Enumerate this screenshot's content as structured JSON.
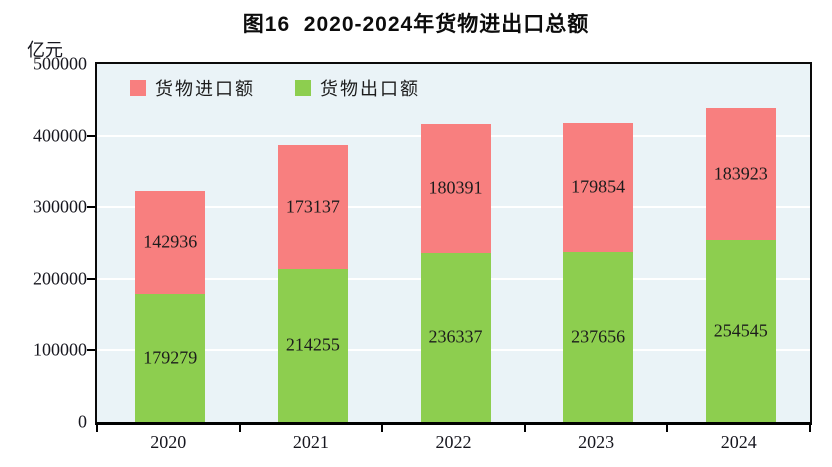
{
  "title": "图16  2020-2024年货物进出口总额",
  "y_axis_unit": "亿元",
  "legend": {
    "items": [
      {
        "label": "货物进口额",
        "color": "#f87f7f"
      },
      {
        "label": "货物出口额",
        "color": "#8dce4f"
      }
    ]
  },
  "chart_data": {
    "type": "bar",
    "stacked": true,
    "title": "图16  2020-2024年货物进出口总额",
    "ylabel": "亿元",
    "categories": [
      "2020",
      "2021",
      "2022",
      "2023",
      "2024"
    ],
    "series": [
      {
        "name": "货物出口额",
        "color": "#8dce4f",
        "values": [
          179279,
          214255,
          236337,
          237656,
          254545
        ]
      },
      {
        "name": "货物进口额",
        "color": "#f87f7f",
        "values": [
          142936,
          173137,
          180391,
          179854,
          183923
        ]
      }
    ],
    "ylim": [
      0,
      500000
    ],
    "y_ticks": [
      0,
      100000,
      200000,
      300000,
      400000,
      500000
    ],
    "grid": true,
    "gridline_color": "#ffffff",
    "plot_background": "#eaf3f7",
    "legend_position": "top-left-inside"
  }
}
